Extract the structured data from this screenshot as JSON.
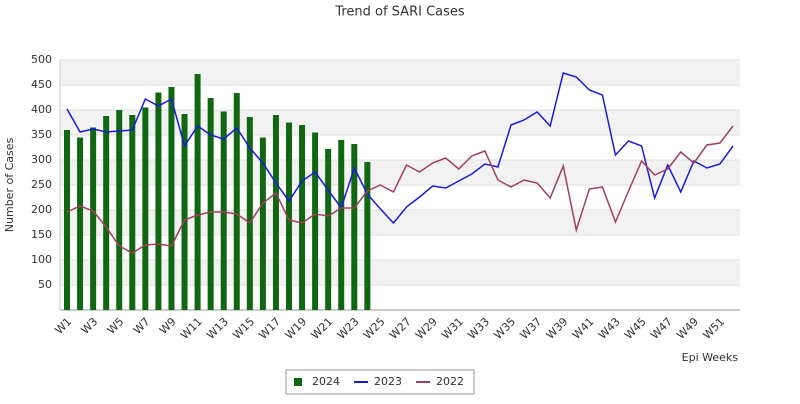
{
  "chart_data": {
    "type": "bar_line",
    "title": "Trend of SARI Cases",
    "y_axis_label": "Number of Cases",
    "x_axis_label": "Epi Weeks",
    "categories": [
      "W1",
      null,
      "W3",
      null,
      "W5",
      null,
      "W7",
      null,
      "W9",
      null,
      "W11",
      null,
      "W13",
      null,
      "W15",
      null,
      "W17",
      null,
      "W19",
      null,
      "W21",
      null,
      "W23",
      null,
      "W25",
      null,
      "W27",
      null,
      "W29",
      null,
      "W31",
      null,
      "W33",
      null,
      "W35",
      null,
      "W37",
      null,
      "W39",
      null,
      "W41",
      null,
      "W43",
      null,
      "W45",
      null,
      "W47",
      null,
      "W49",
      null,
      "W51",
      null
    ],
    "series": [
      {
        "name": "2024",
        "type": "bar",
        "color": "#116611",
        "values": [
          360,
          345,
          365,
          388,
          400,
          390,
          405,
          435,
          446,
          392,
          472,
          424,
          397,
          434,
          386,
          345,
          390,
          375,
          370,
          355,
          322,
          340,
          332,
          296,
          null,
          null,
          null,
          null,
          null,
          null,
          null,
          null,
          null,
          null,
          null,
          null,
          null,
          null,
          null,
          null,
          null,
          null,
          null,
          null,
          null,
          null,
          null,
          null,
          null,
          null,
          null,
          null
        ]
      },
      {
        "name": "2023",
        "type": "line",
        "color": "#1a1adb",
        "values": [
          402,
          356,
          362,
          356,
          358,
          360,
          422,
          408,
          422,
          328,
          368,
          350,
          342,
          364,
          324,
          294,
          254,
          218,
          258,
          276,
          240,
          204,
          284,
          232,
          202,
          174,
          206,
          226,
          248,
          244,
          258,
          272,
          292,
          286,
          370,
          380,
          396,
          368,
          474,
          466,
          440,
          430,
          310,
          338,
          328,
          224,
          290,
          236,
          298,
          284,
          292,
          328
        ]
      },
      {
        "name": "2022",
        "type": "line",
        "color": "#a0405e",
        "values": [
          196,
          208,
          198,
          166,
          128,
          114,
          130,
          132,
          128,
          180,
          190,
          196,
          196,
          192,
          174,
          214,
          234,
          180,
          174,
          192,
          188,
          204,
          204,
          238,
          250,
          236,
          290,
          276,
          294,
          304,
          282,
          308,
          318,
          260,
          246,
          260,
          254,
          224,
          288,
          160,
          242,
          246,
          176,
          238,
          298,
          270,
          282,
          316,
          294,
          330,
          334,
          368
        ]
      }
    ],
    "ylim": [
      0,
      500
    ],
    "yticks": [
      50,
      100,
      150,
      200,
      250,
      300,
      350,
      400,
      450,
      500
    ],
    "grid": true,
    "legend": "bottom"
  }
}
